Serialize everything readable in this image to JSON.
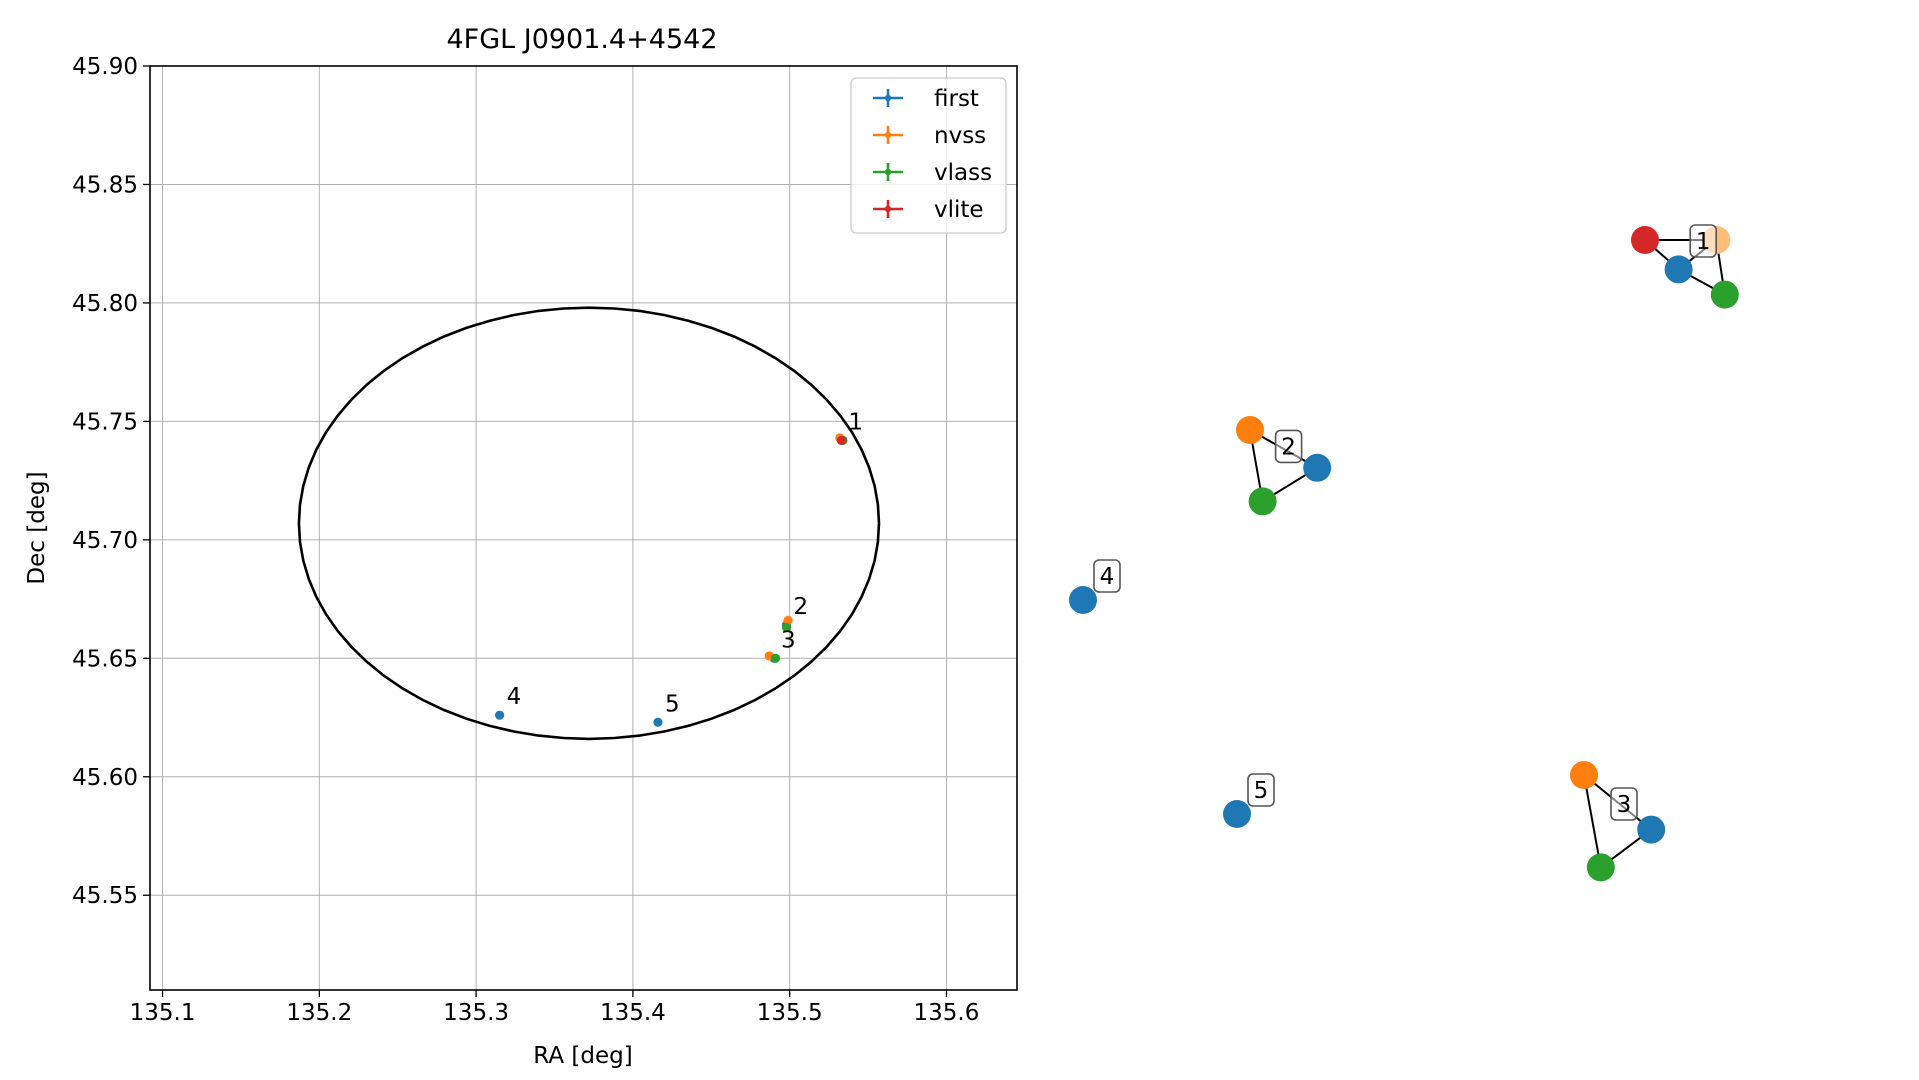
{
  "chart_data": [
    {
      "type": "scatter",
      "title": "4FGL J0901.4+4542",
      "xlabel": "RA [deg]",
      "ylabel": "Dec [deg]",
      "xlim": [
        135.092,
        135.645
      ],
      "ylim": [
        45.51,
        45.9
      ],
      "grid": true,
      "x_ticks": [
        135.1,
        135.2,
        135.3,
        135.4,
        135.5,
        135.6
      ],
      "x_tick_labels": [
        "135.1",
        "135.2",
        "135.3",
        "135.4",
        "135.5",
        "135.6"
      ],
      "y_ticks": [
        45.55,
        45.6,
        45.65,
        45.7,
        45.75,
        45.8,
        45.85,
        45.9
      ],
      "y_tick_labels": [
        "45.55",
        "45.60",
        "45.65",
        "45.70",
        "45.75",
        "45.80",
        "45.85",
        "45.90"
      ],
      "legend_position": "top-right",
      "series": [
        {
          "name": "first",
          "color": "#1f77b4",
          "x": [
            135.533,
            135.498,
            135.49,
            135.315,
            135.416
          ],
          "y": [
            45.742,
            45.664,
            45.65,
            45.626,
            45.623
          ],
          "labels": [
            "1",
            "2",
            "3",
            "4",
            "5"
          ]
        },
        {
          "name": "nvss",
          "color": "#ff7f0e",
          "x": [
            135.532,
            135.499,
            135.487
          ],
          "y": [
            45.743,
            45.666,
            45.651
          ]
        },
        {
          "name": "vlass",
          "color": "#2ca02c",
          "x": [
            135.534,
            135.498,
            135.491
          ],
          "y": [
            45.742,
            45.663,
            45.65
          ]
        },
        {
          "name": "vlite",
          "color": "#d62728",
          "x": [
            135.533
          ],
          "y": [
            45.742
          ]
        }
      ],
      "ellipse": {
        "center": [
          135.372,
          45.707
        ],
        "semi_axis_x": 0.185,
        "semi_axis_y": 0.091,
        "color": "#000000"
      }
    },
    {
      "type": "network",
      "groups": [
        {
          "label": "1",
          "nodes": [
            {
              "color": "#d62728",
              "x": 0.0,
              "y": 0.0
            },
            {
              "color": "#1f77b4",
              "x": 0.8,
              "y": -0.7
            },
            {
              "color": "#ffbb78",
              "x": 1.7,
              "y": 0.0
            },
            {
              "color": "#2ca02c",
              "x": 1.9,
              "y": -1.3
            }
          ],
          "edges": [
            [
              0,
              1
            ],
            [
              0,
              2
            ],
            [
              1,
              2
            ],
            [
              1,
              3
            ],
            [
              2,
              3
            ]
          ]
        },
        {
          "label": "2",
          "nodes": [
            {
              "color": "#ff7f0e",
              "x": 0.0,
              "y": 0.0
            },
            {
              "color": "#1f77b4",
              "x": 1.6,
              "y": -0.9
            },
            {
              "color": "#2ca02c",
              "x": 0.3,
              "y": -1.7
            }
          ],
          "edges": [
            [
              0,
              1
            ],
            [
              0,
              2
            ],
            [
              1,
              2
            ]
          ]
        },
        {
          "label": "3",
          "nodes": [
            {
              "color": "#ff7f0e",
              "x": 0.0,
              "y": 0.0
            },
            {
              "color": "#1f77b4",
              "x": 1.6,
              "y": -1.3
            },
            {
              "color": "#2ca02c",
              "x": 0.4,
              "y": -2.2
            }
          ],
          "edges": [
            [
              0,
              1
            ],
            [
              0,
              2
            ],
            [
              1,
              2
            ]
          ]
        },
        {
          "label": "4",
          "nodes": [
            {
              "color": "#1f77b4",
              "x": 0.0,
              "y": 0.0
            }
          ],
          "edges": []
        },
        {
          "label": "5",
          "nodes": [
            {
              "color": "#1f77b4",
              "x": 0.0,
              "y": 0.0
            }
          ],
          "edges": []
        }
      ]
    }
  ]
}
